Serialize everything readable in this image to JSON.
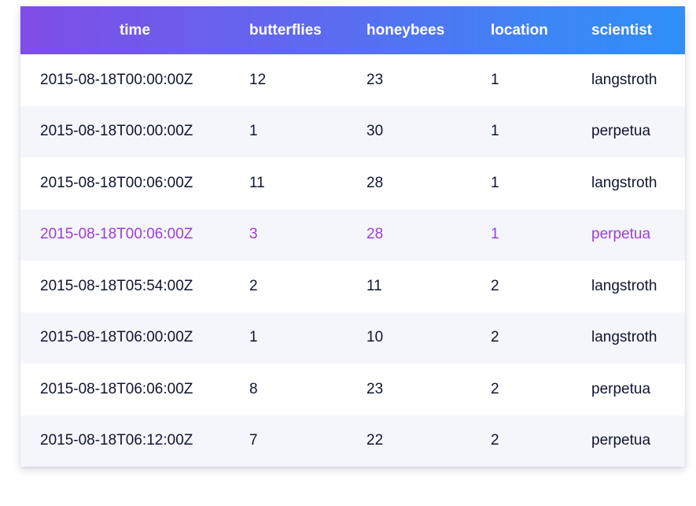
{
  "table": {
    "columns": [
      "time",
      "butterflies",
      "honeybees",
      "location",
      "scientist"
    ],
    "rows": [
      {
        "time": "2015-08-18T00:00:00Z",
        "butterflies": "12",
        "honeybees": "23",
        "location": "1",
        "scientist": "langstroth"
      },
      {
        "time": "2015-08-18T00:00:00Z",
        "butterflies": "1",
        "honeybees": "30",
        "location": "1",
        "scientist": "perpetua"
      },
      {
        "time": "2015-08-18T00:06:00Z",
        "butterflies": "11",
        "honeybees": "28",
        "location": "1",
        "scientist": "langstroth"
      },
      {
        "time": "2015-08-18T00:06:00Z",
        "butterflies": "3",
        "honeybees": "28",
        "location": "1",
        "scientist": "perpetua"
      },
      {
        "time": "2015-08-18T05:54:00Z",
        "butterflies": "2",
        "honeybees": "11",
        "location": "2",
        "scientist": "langstroth"
      },
      {
        "time": "2015-08-18T06:00:00Z",
        "butterflies": "1",
        "honeybees": "10",
        "location": "2",
        "scientist": "langstroth"
      },
      {
        "time": "2015-08-18T06:06:00Z",
        "butterflies": "8",
        "honeybees": "23",
        "location": "2",
        "scientist": "perpetua"
      },
      {
        "time": "2015-08-18T06:12:00Z",
        "butterflies": "7",
        "honeybees": "22",
        "location": "2",
        "scientist": "perpetua"
      }
    ],
    "highlighted_row": 3
  },
  "colors": {
    "header_gradient_start": "#7f4de6",
    "header_gradient_end": "#2f8ff8",
    "highlight_text": "#9a3ed8",
    "body_text": "#0f1630",
    "stripe": "#f5f6fc"
  }
}
